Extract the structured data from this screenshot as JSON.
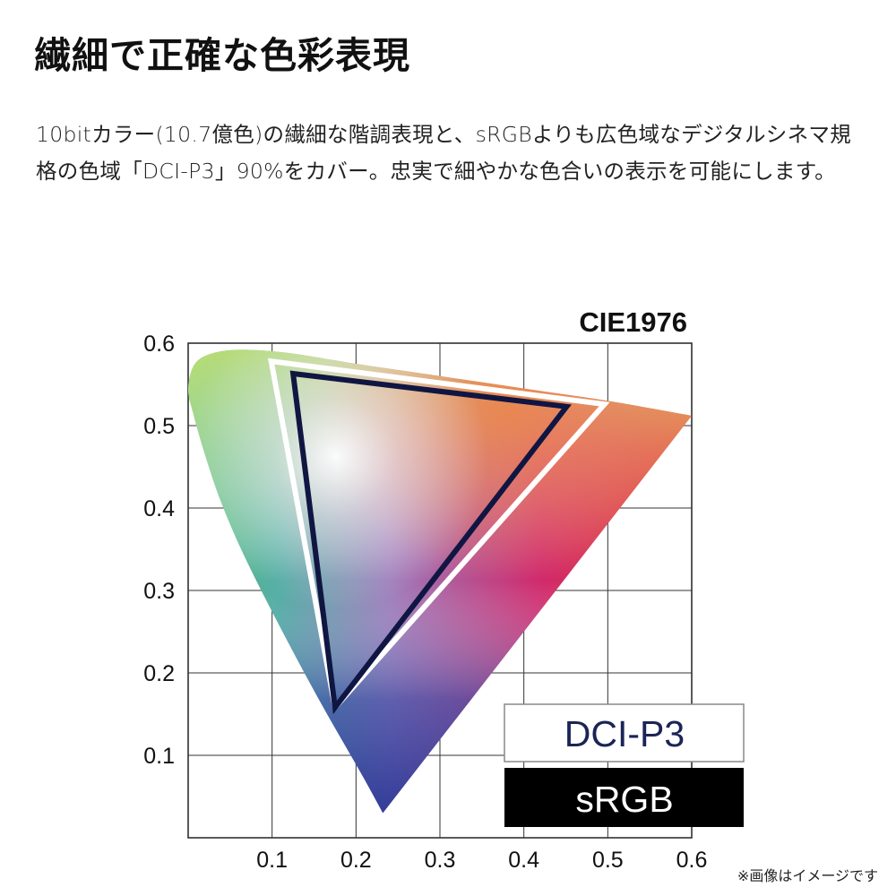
{
  "page": {
    "title": "繊細で正確な色彩表現",
    "description_lines": [
      "10bitカラー(10.7億色)の繊細な階調表現と、sRGBよりも広色域なデジタルシネマ規",
      "格の色域「DCI-P3」90%をカバー。忠実で細やかな色合いの表示を可能にします。"
    ],
    "footnote": "※画像はイメージです"
  },
  "chart_data": {
    "type": "scatter",
    "title": "CIE1976",
    "xlabel": "",
    "ylabel": "",
    "xlim": [
      0,
      0.6
    ],
    "ylim": [
      0,
      0.6
    ],
    "x_ticks": [
      0.1,
      0.2,
      0.3,
      0.4,
      0.5,
      0.6
    ],
    "y_ticks": [
      0.1,
      0.2,
      0.3,
      0.4,
      0.5,
      0.6
    ],
    "grid": true,
    "legend_position": "bottom-right",
    "legend": [
      {
        "name": "DCI-P3",
        "style": "outlined",
        "color": "#1b2457"
      },
      {
        "name": "sRGB",
        "style": "filled",
        "color": "#000000"
      }
    ],
    "series": [
      {
        "name": "DCI-P3",
        "closed": true,
        "stroke": "#ffffff",
        "points": [
          [
            0.099,
            0.578
          ],
          [
            0.496,
            0.526
          ],
          [
            0.175,
            0.158
          ]
        ]
      },
      {
        "name": "sRGB",
        "closed": true,
        "stroke": "#101642",
        "points": [
          [
            0.125,
            0.563
          ],
          [
            0.451,
            0.523
          ],
          [
            0.175,
            0.158
          ]
        ]
      }
    ],
    "gamut_boundary": [
      [
        0.232,
        0.03
      ],
      [
        0.205,
        0.08
      ],
      [
        0.16,
        0.16
      ],
      [
        0.115,
        0.245
      ],
      [
        0.07,
        0.335
      ],
      [
        0.04,
        0.405
      ],
      [
        0.02,
        0.465
      ],
      [
        0.006,
        0.515
      ],
      [
        0.0,
        0.545
      ],
      [
        0.008,
        0.575
      ],
      [
        0.03,
        0.588
      ],
      [
        0.065,
        0.592
      ],
      [
        0.12,
        0.588
      ],
      [
        0.2,
        0.575
      ],
      [
        0.3,
        0.56
      ],
      [
        0.4,
        0.545
      ],
      [
        0.5,
        0.53
      ],
      [
        0.6,
        0.512
      ]
    ]
  }
}
